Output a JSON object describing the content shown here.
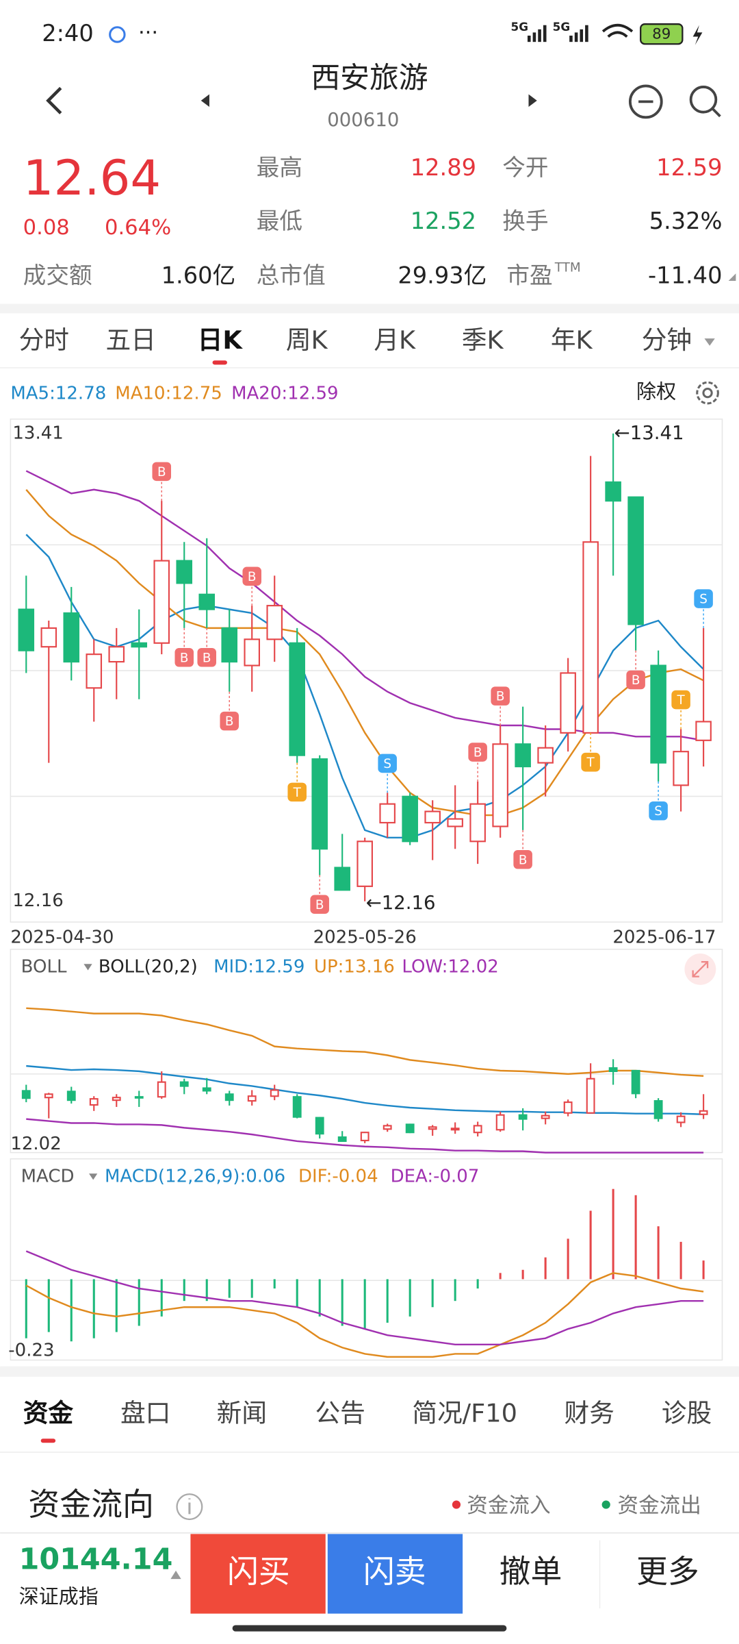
{
  "status_bar": {
    "time": "2:40",
    "network": [
      "5G",
      "5G"
    ],
    "battery": "89"
  },
  "header": {
    "name": "西安旅游",
    "code": "000610"
  },
  "quote": {
    "price": "12.64",
    "change": "0.08",
    "change_pct": "0.64%",
    "stats": [
      {
        "label": "最高",
        "value": "12.89",
        "color": "#e5343b"
      },
      {
        "label": "今开",
        "value": "12.59",
        "color": "#e5343b"
      },
      {
        "label": "最低",
        "value": "12.52",
        "color": "#1aa260"
      },
      {
        "label": "换手",
        "value": "5.32%",
        "color": "#222222"
      },
      {
        "label": "成交额",
        "value": "1.60亿",
        "color": "#222222"
      },
      {
        "label": "总市值",
        "value": "29.93亿",
        "color": "#222222"
      },
      {
        "label": "市盈",
        "sup": "TTM",
        "value": "-11.40",
        "color": "#222222"
      }
    ]
  },
  "period_tabs": {
    "items": [
      "分时",
      "五日",
      "日K",
      "周K",
      "月K",
      "季K",
      "年K",
      "分钟"
    ],
    "active": 2
  },
  "chart_data": [
    {
      "type": "candlestick",
      "button": "除权",
      "categories": [
        "2025-04-30",
        null,
        null,
        null,
        null,
        null,
        null,
        null,
        null,
        null,
        null,
        null,
        null,
        null,
        null,
        "2025-05-26",
        null,
        null,
        null,
        null,
        null,
        null,
        null,
        null,
        null,
        null,
        null,
        null,
        null,
        null,
        "2025-06-17"
      ],
      "open": [
        12.94,
        12.84,
        12.93,
        12.73,
        12.8,
        12.85,
        12.85,
        13.07,
        12.98,
        12.89,
        12.79,
        12.86,
        12.85,
        12.54,
        12.25,
        12.2,
        12.37,
        12.44,
        12.37,
        12.36,
        12.32,
        12.36,
        12.58,
        12.53,
        12.61,
        12.61,
        13.28,
        13.24,
        12.79,
        12.47,
        12.59
      ],
      "high": [
        13.03,
        12.91,
        13.0,
        12.86,
        12.89,
        12.94,
        13.23,
        13.12,
        13.13,
        12.94,
        12.95,
        13.03,
        12.89,
        12.55,
        12.34,
        12.33,
        12.45,
        12.45,
        12.43,
        12.47,
        12.48,
        12.63,
        12.68,
        12.63,
        12.81,
        13.35,
        13.41,
        13.24,
        12.83,
        12.62,
        12.89
      ],
      "low": [
        12.77,
        12.53,
        12.75,
        12.64,
        12.7,
        12.7,
        12.82,
        12.89,
        12.89,
        12.72,
        12.72,
        12.8,
        12.53,
        12.23,
        12.19,
        12.16,
        12.33,
        12.31,
        12.27,
        12.3,
        12.26,
        12.33,
        12.35,
        12.44,
        12.56,
        12.61,
        13.03,
        12.83,
        12.48,
        12.4,
        12.52
      ],
      "close": [
        12.83,
        12.89,
        12.8,
        12.82,
        12.84,
        12.84,
        13.07,
        13.01,
        12.94,
        12.8,
        12.86,
        12.95,
        12.55,
        12.3,
        12.19,
        12.32,
        12.42,
        12.32,
        12.4,
        12.38,
        12.42,
        12.58,
        12.52,
        12.57,
        12.77,
        13.12,
        13.23,
        12.9,
        12.53,
        12.56,
        12.64
      ],
      "up_color": "#e5474a",
      "down_color": "#1cb87a",
      "signals": [
        null,
        null,
        null,
        null,
        null,
        null,
        "B",
        "B",
        "B",
        "B",
        "B",
        null,
        "T",
        "B",
        null,
        null,
        "S",
        null,
        null,
        null,
        "B",
        "B",
        "B",
        null,
        null,
        "T",
        null,
        "B",
        "S",
        "T",
        "S"
      ],
      "high_label": "←13.41",
      "low_label": "←12.16",
      "series": [
        {
          "name": "MA5:12.78",
          "color": "#1e88c8",
          "values": [
            13.14,
            13.08,
            12.96,
            12.86,
            12.84,
            12.86,
            12.91,
            12.94,
            12.95,
            12.94,
            12.93,
            12.89,
            12.82,
            12.66,
            12.49,
            12.35,
            12.33,
            12.33,
            12.35,
            12.4,
            12.41,
            12.43,
            12.47,
            12.52,
            12.61,
            12.72,
            12.83,
            12.89,
            12.91,
            12.84,
            12.78
          ]
        },
        {
          "name": "MA10:12.75",
          "color": "#e08a1e",
          "values": [
            13.26,
            13.19,
            13.14,
            13.11,
            13.07,
            13.01,
            12.96,
            12.91,
            12.89,
            12.89,
            12.89,
            12.89,
            12.88,
            12.82,
            12.72,
            12.61,
            12.52,
            12.45,
            12.41,
            12.4,
            12.39,
            12.39,
            12.41,
            12.45,
            12.54,
            12.63,
            12.7,
            12.75,
            12.77,
            12.78,
            12.75
          ]
        },
        {
          "name": "MA20:12.59",
          "color": "#a030b0",
          "values": [
            13.31,
            13.28,
            13.25,
            13.26,
            13.25,
            13.23,
            13.19,
            13.15,
            13.11,
            13.05,
            13.01,
            12.96,
            12.91,
            12.87,
            12.82,
            12.76,
            12.72,
            12.69,
            12.67,
            12.65,
            12.64,
            12.63,
            12.63,
            12.62,
            12.62,
            12.61,
            12.61,
            12.6,
            12.6,
            12.6,
            12.59
          ]
        }
      ],
      "ylim": [
        12.11,
        13.44
      ],
      "yticks": [
        12.16,
        13.41
      ]
    },
    {
      "type": "boll",
      "indicator": "BOLL",
      "title": "BOLL(20,2)",
      "series": [
        {
          "name": "MID:12.59",
          "color": "#1e88c8",
          "values": [
            13.31,
            13.28,
            13.25,
            13.26,
            13.25,
            13.23,
            13.19,
            13.15,
            13.11,
            13.05,
            13.01,
            12.96,
            12.91,
            12.87,
            12.82,
            12.76,
            12.72,
            12.69,
            12.67,
            12.65,
            12.64,
            12.63,
            12.63,
            12.62,
            12.62,
            12.61,
            12.61,
            12.6,
            12.6,
            12.6,
            12.59
          ]
        },
        {
          "name": "UP:13.16",
          "color": "#e08a1e",
          "values": [
            14.17,
            14.15,
            14.12,
            14.09,
            14.09,
            14.09,
            14.06,
            13.99,
            13.93,
            13.84,
            13.76,
            13.6,
            13.57,
            13.55,
            13.53,
            13.52,
            13.47,
            13.4,
            13.36,
            13.32,
            13.27,
            13.24,
            13.23,
            13.21,
            13.19,
            13.21,
            13.24,
            13.24,
            13.21,
            13.18,
            13.16
          ]
        },
        {
          "name": "LOW:12.02",
          "color": "#a030b0",
          "values": [
            12.52,
            12.49,
            12.46,
            12.46,
            12.44,
            12.44,
            12.43,
            12.39,
            12.36,
            12.33,
            12.29,
            12.24,
            12.19,
            12.16,
            12.13,
            12.11,
            12.1,
            12.08,
            12.07,
            12.05,
            12.05,
            12.04,
            12.04,
            12.02,
            12.02,
            12.02,
            12.02,
            12.02,
            12.02,
            12.02,
            12.02
          ]
        }
      ],
      "ylim": [
        12.02,
        15.0
      ],
      "yticks": [
        12.02
      ]
    },
    {
      "type": "macd",
      "indicator": "MACD",
      "series": [
        {
          "name": "MACD(12,26,9):0.06",
          "color": "#1e88c8",
          "values": [
            -0.19,
            -0.17,
            -0.2,
            -0.19,
            -0.17,
            -0.15,
            -0.12,
            -0.07,
            -0.07,
            -0.06,
            -0.06,
            -0.03,
            -0.09,
            -0.12,
            -0.15,
            -0.16,
            -0.14,
            -0.12,
            -0.09,
            -0.07,
            -0.03,
            0.02,
            0.03,
            0.07,
            0.13,
            0.22,
            0.29,
            0.27,
            0.17,
            0.12,
            0.06
          ]
        },
        {
          "name": "DIF:-0.04",
          "color": "#e08a1e",
          "values": [
            -0.02,
            -0.06,
            -0.09,
            -0.11,
            -0.12,
            -0.11,
            -0.1,
            -0.09,
            -0.09,
            -0.09,
            -0.1,
            -0.11,
            -0.14,
            -0.19,
            -0.22,
            -0.24,
            -0.25,
            -0.25,
            -0.25,
            -0.24,
            -0.24,
            -0.21,
            -0.18,
            -0.14,
            -0.08,
            -0.01,
            0.02,
            0.01,
            -0.01,
            -0.03,
            -0.04
          ]
        },
        {
          "name": "DEA:-0.07",
          "color": "#a030b0",
          "values": [
            0.09,
            0.06,
            0.03,
            0.01,
            -0.01,
            -0.03,
            -0.04,
            -0.05,
            -0.06,
            -0.07,
            -0.07,
            -0.08,
            -0.09,
            -0.11,
            -0.14,
            -0.16,
            -0.18,
            -0.19,
            -0.2,
            -0.21,
            -0.21,
            -0.21,
            -0.2,
            -0.19,
            -0.16,
            -0.14,
            -0.11,
            -0.09,
            -0.08,
            -0.07,
            -0.07
          ]
        }
      ],
      "ylim": [
        -0.26,
        0.38
      ],
      "yticks": [
        -0.23
      ]
    }
  ],
  "bottom_tabs": {
    "items": [
      "资金",
      "盘口",
      "新闻",
      "公告",
      "简况/F10",
      "财务",
      "诊股"
    ],
    "active": 0
  },
  "fund_flow": {
    "title": "资金流向",
    "legend": [
      "资金流入",
      "资金流出"
    ]
  },
  "footer": {
    "index_value": "10144.14",
    "index_name": "深证成指",
    "buttons": [
      "闪买",
      "闪卖",
      "撤单",
      "更多"
    ]
  }
}
